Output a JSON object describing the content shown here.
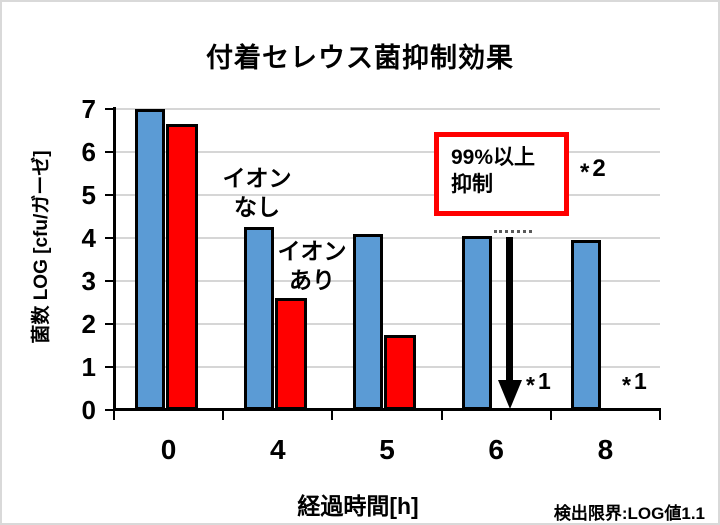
{
  "title": "付着セレウス菌抑制効果",
  "colors": {
    "bar_blue": "#5B9BD5",
    "bar_red": "#FF0000",
    "box_border": "#FF0000",
    "gridline": "#D6D6D6",
    "axis": "#000000"
  },
  "chart_data": {
    "type": "bar",
    "title": "付着セレウス菌抑制効果",
    "categories": [
      "0",
      "4",
      "5",
      "6",
      "8"
    ],
    "series": [
      {
        "name": "イオンなし",
        "color": "#5B9BD5",
        "values": [
          7.0,
          4.25,
          4.1,
          4.05,
          3.95
        ]
      },
      {
        "name": "イオンあり",
        "color": "#FF0000",
        "values": [
          6.65,
          2.6,
          1.75,
          null,
          null
        ]
      }
    ],
    "xlabel": "経過時間[h]",
    "ylabel": "菌数 LOG [cfu/ガーゼ]",
    "ylim": [
      0,
      7
    ],
    "yticks": [
      0,
      1,
      2,
      3,
      4,
      5,
      6,
      7
    ],
    "grid": "horizontal",
    "legend_position": "none",
    "annotations": {
      "series1_label": {
        "line1": "イオン",
        "line2": "なし"
      },
      "series2_label": {
        "line1": "イオン",
        "line2": "あり"
      },
      "suppression_box": {
        "line1": "99%以上",
        "line2": "抑制"
      },
      "star2": {
        "star": "*",
        "num": "2"
      },
      "star1_6h": {
        "star": "*",
        "num": "1"
      },
      "star1_8h": {
        "star": "*",
        "num": "1"
      },
      "arrow_at_category": "6",
      "detection_limit_note": "検出限界:LOG値1.1"
    }
  }
}
